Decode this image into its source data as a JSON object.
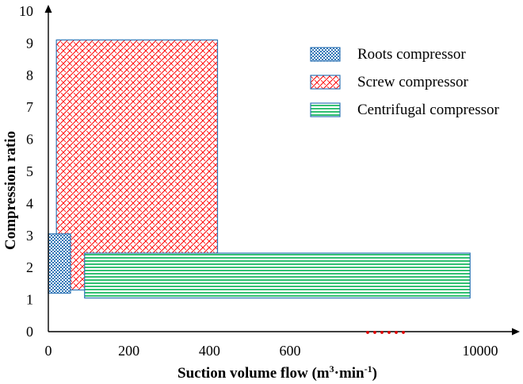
{
  "chart_data": {
    "type": "range-region",
    "title": "",
    "xlabel": "Suction volume flow (m³·min⁻¹)",
    "xlabel_base": "Suction volume flow (m",
    "xlabel_sup1": "3",
    "xlabel_mid": "·min",
    "xlabel_sup2": "-1",
    "xlabel_end": ")",
    "ylabel": "Compression ratio",
    "ylim": [
      0,
      10
    ],
    "y_ticks": [
      "0",
      "1",
      "2",
      "3",
      "4",
      "5",
      "6",
      "7",
      "8",
      "9",
      "10"
    ],
    "x_ticks": [
      {
        "label": "0",
        "value": 0
      },
      {
        "label": "200",
        "value": 200
      },
      {
        "label": "400",
        "value": 400
      },
      {
        "label": "600",
        "value": 600
      },
      {
        "label": "10000",
        "value": 10000
      }
    ],
    "x_axis_break": "......",
    "series": [
      {
        "name": "Roots compressor",
        "pattern": "checker",
        "color": "#2e75b6",
        "x_range": [
          0,
          55
        ],
        "y_range": [
          1.2,
          3.05
        ]
      },
      {
        "name": "Screw compressor",
        "pattern": "brick",
        "color": "#ff0000",
        "x_range": [
          20,
          420
        ],
        "y_range": [
          1.3,
          9.1
        ]
      },
      {
        "name": "Centrifugal compressor",
        "pattern": "horizontal",
        "color": "#00b050",
        "x_range": [
          90,
          9500
        ],
        "y_range": [
          1.05,
          2.45
        ]
      }
    ],
    "legend_position": "top-right"
  }
}
